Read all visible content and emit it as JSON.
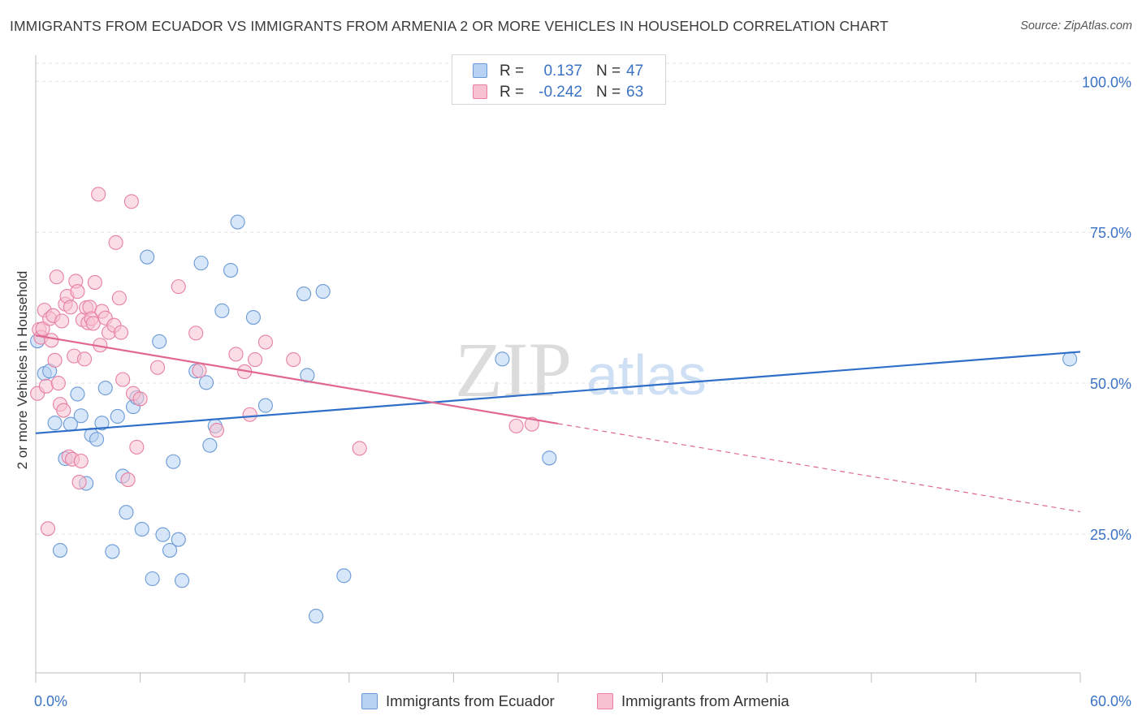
{
  "header": {
    "title": "IMMIGRANTS FROM ECUADOR VS IMMIGRANTS FROM ARMENIA 2 OR MORE VEHICLES IN HOUSEHOLD CORRELATION CHART",
    "source": "Source: ZipAtlas.com"
  },
  "legend_top": {
    "rows": [
      {
        "r_label": "R =",
        "r_value": "0.137",
        "n_label": "N =",
        "n_value": "47"
      },
      {
        "r_label": "R =",
        "r_value": "-0.242",
        "n_label": "N =",
        "n_value": "63"
      }
    ]
  },
  "legend_bottom": {
    "items": [
      {
        "label": "Immigrants from Ecuador"
      },
      {
        "label": "Immigrants from Armenia"
      }
    ]
  },
  "watermark": {
    "zip": "ZIP",
    "atlas": "atlas"
  },
  "colors": {
    "ecuador_fill": "#b7d2f3",
    "ecuador_stroke": "#6a9ad6",
    "ecuador_line": "#2f6fc9",
    "armenia_fill": "#f8c1d2",
    "armenia_stroke": "#e77fa3",
    "armenia_line": "#e06890",
    "axis_text": "#3b73c4",
    "grid": "#e3e3e3"
  },
  "chart_data": {
    "type": "scatter",
    "title": "IMMIGRANTS FROM ECUADOR VS IMMIGRANTS FROM ARMENIA 2 OR MORE VEHICLES IN HOUSEHOLD CORRELATION CHART",
    "xlabel": "",
    "ylabel": "2 or more Vehicles in Household",
    "xlim": [
      0,
      60
    ],
    "ylim": [
      2,
      103
    ],
    "x_tick_labels": [
      "0.0%",
      "60.0%"
    ],
    "y_ticks": [
      25,
      50,
      75,
      100
    ],
    "y_tick_labels": [
      "25.0%",
      "50.0%",
      "75.0%",
      "100.0%"
    ],
    "grid": true,
    "legend_position": "top-center",
    "series": [
      {
        "name": "Immigrants from Ecuador",
        "r": 0.137,
        "n": 47,
        "trend": {
          "x": [
            0,
            60
          ],
          "y": [
            41.7,
            55.2
          ],
          "dashed_x": null
        },
        "points": [
          [
            0.1,
            57.0
          ],
          [
            0.5,
            51.6
          ],
          [
            0.8,
            52.0
          ],
          [
            1.1,
            43.4
          ],
          [
            1.4,
            22.3
          ],
          [
            1.7,
            37.5
          ],
          [
            2.0,
            43.2
          ],
          [
            2.4,
            48.2
          ],
          [
            2.6,
            44.6
          ],
          [
            2.9,
            33.4
          ],
          [
            3.2,
            41.4
          ],
          [
            3.5,
            40.7
          ],
          [
            3.8,
            43.4
          ],
          [
            4.0,
            49.2
          ],
          [
            4.4,
            22.1
          ],
          [
            4.7,
            44.5
          ],
          [
            5.0,
            34.6
          ],
          [
            5.2,
            28.6
          ],
          [
            5.6,
            46.1
          ],
          [
            5.8,
            47.6
          ],
          [
            6.1,
            25.8
          ],
          [
            6.4,
            70.9
          ],
          [
            6.7,
            17.6
          ],
          [
            7.1,
            56.9
          ],
          [
            7.3,
            24.9
          ],
          [
            7.7,
            22.3
          ],
          [
            7.9,
            37.0
          ],
          [
            8.2,
            24.1
          ],
          [
            8.4,
            17.3
          ],
          [
            9.2,
            52.0
          ],
          [
            9.5,
            69.9
          ],
          [
            9.8,
            50.1
          ],
          [
            10.0,
            39.7
          ],
          [
            10.3,
            42.9
          ],
          [
            10.7,
            62.0
          ],
          [
            11.2,
            68.7
          ],
          [
            11.6,
            76.7
          ],
          [
            12.5,
            60.9
          ],
          [
            13.2,
            46.3
          ],
          [
            15.4,
            64.8
          ],
          [
            15.6,
            51.3
          ],
          [
            16.1,
            11.4
          ],
          [
            16.5,
            65.2
          ],
          [
            17.7,
            18.1
          ],
          [
            26.8,
            54.0
          ],
          [
            29.5,
            37.6
          ],
          [
            59.4,
            54.0
          ]
        ]
      },
      {
        "name": "Immigrants from Armenia",
        "r": -0.242,
        "n": 63,
        "trend": {
          "x": [
            0,
            30
          ],
          "y": [
            57.9,
            43.3
          ],
          "dashed_x": [
            30,
            60
          ]
        },
        "points": [
          [
            0.1,
            48.3
          ],
          [
            0.2,
            58.9
          ],
          [
            0.3,
            57.6
          ],
          [
            0.4,
            59.0
          ],
          [
            0.5,
            62.1
          ],
          [
            0.6,
            49.5
          ],
          [
            0.7,
            25.9
          ],
          [
            0.8,
            60.7
          ],
          [
            0.9,
            57.1
          ],
          [
            1.0,
            61.2
          ],
          [
            1.1,
            53.8
          ],
          [
            1.2,
            67.6
          ],
          [
            1.3,
            50.0
          ],
          [
            1.4,
            46.5
          ],
          [
            1.5,
            60.3
          ],
          [
            1.6,
            45.5
          ],
          [
            1.7,
            63.1
          ],
          [
            1.8,
            64.4
          ],
          [
            1.9,
            37.8
          ],
          [
            2.0,
            62.6
          ],
          [
            2.1,
            37.4
          ],
          [
            2.2,
            54.5
          ],
          [
            2.3,
            66.9
          ],
          [
            2.4,
            65.2
          ],
          [
            2.5,
            33.6
          ],
          [
            2.6,
            37.1
          ],
          [
            2.7,
            60.5
          ],
          [
            2.8,
            54.0
          ],
          [
            2.9,
            62.5
          ],
          [
            3.0,
            60.0
          ],
          [
            3.1,
            62.6
          ],
          [
            3.2,
            60.7
          ],
          [
            3.3,
            59.9
          ],
          [
            3.4,
            66.7
          ],
          [
            3.6,
            81.3
          ],
          [
            3.7,
            56.3
          ],
          [
            3.8,
            61.9
          ],
          [
            4.0,
            60.8
          ],
          [
            4.2,
            58.4
          ],
          [
            4.5,
            59.6
          ],
          [
            4.6,
            73.3
          ],
          [
            4.8,
            64.1
          ],
          [
            4.9,
            58.4
          ],
          [
            5.0,
            50.6
          ],
          [
            5.3,
            34.0
          ],
          [
            5.5,
            80.1
          ],
          [
            5.6,
            48.3
          ],
          [
            5.8,
            39.4
          ],
          [
            6.0,
            47.4
          ],
          [
            7.0,
            52.6
          ],
          [
            8.2,
            66.0
          ],
          [
            9.2,
            58.3
          ],
          [
            9.4,
            52.1
          ],
          [
            10.4,
            42.2
          ],
          [
            11.5,
            54.8
          ],
          [
            12.0,
            51.9
          ],
          [
            12.3,
            44.8
          ],
          [
            12.6,
            53.9
          ],
          [
            13.2,
            56.8
          ],
          [
            14.8,
            53.9
          ],
          [
            18.6,
            39.2
          ],
          [
            27.6,
            42.9
          ],
          [
            28.5,
            43.2
          ]
        ]
      }
    ]
  }
}
